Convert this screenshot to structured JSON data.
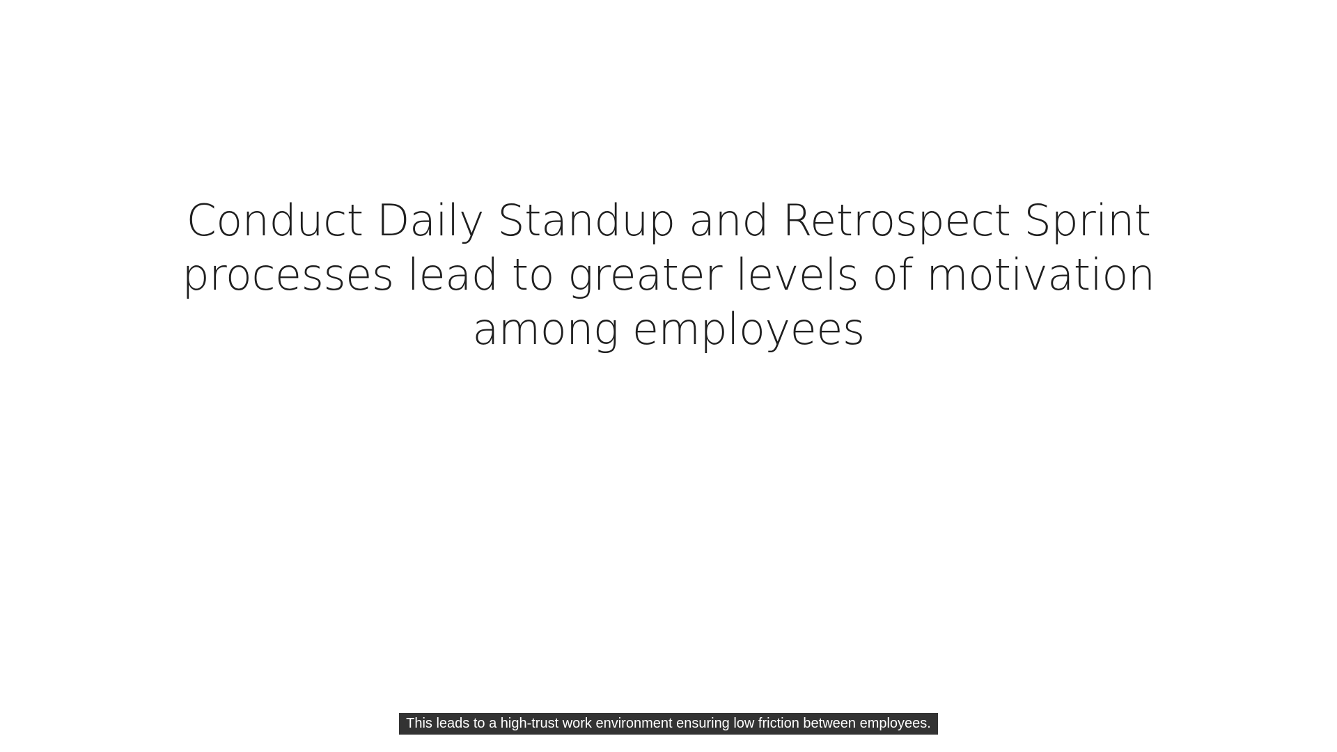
{
  "slide": {
    "title": "Conduct Daily Standup and Retrospect Sprint processes lead to greater levels of motivation among employees"
  },
  "caption": {
    "text": "This leads to a high-trust work environment ensuring low friction between employees."
  }
}
